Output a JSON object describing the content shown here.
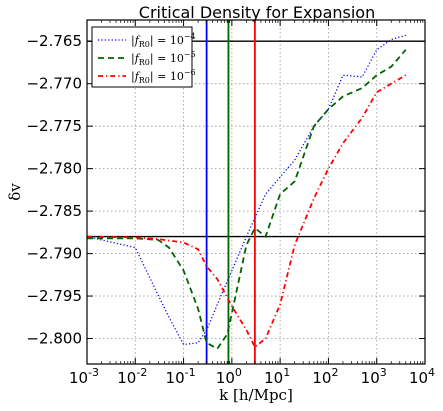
{
  "chart_data": {
    "type": "line",
    "title": "Critical Density for Expansion",
    "xlabel": "k [h/Mpc]",
    "ylabel": "δv",
    "xscale": "log",
    "xlim": [
      0.001,
      10000
    ],
    "ylim": [
      -2.803,
      -2.7625
    ],
    "grid": true,
    "legend_position": "top-left",
    "x_ticks": [
      {
        "value": 0.001,
        "base": "10",
        "exp": "-3"
      },
      {
        "value": 0.01,
        "base": "10",
        "exp": "-2"
      },
      {
        "value": 0.1,
        "base": "10",
        "exp": "-1"
      },
      {
        "value": 1,
        "base": "10",
        "exp": "0"
      },
      {
        "value": 10,
        "base": "10",
        "exp": "1"
      },
      {
        "value": 100,
        "base": "10",
        "exp": "2"
      },
      {
        "value": 1000,
        "base": "10",
        "exp": "3"
      },
      {
        "value": 10000,
        "base": "10",
        "exp": "4"
      }
    ],
    "y_ticks": [
      -2.765,
      -2.77,
      -2.775,
      -2.78,
      -2.785,
      -2.79,
      -2.795,
      -2.8
    ],
    "y_tick_labels": [
      "−2.765",
      "−2.770",
      "−2.775",
      "−2.780",
      "−2.785",
      "−2.790",
      "−2.795",
      "−2.800"
    ],
    "series": [
      {
        "name": "|fR0| = 10^-4",
        "color": "#0000ff",
        "dash": "dotted",
        "x": [
          0.001,
          0.01,
          0.025,
          0.05,
          0.1,
          0.2,
          0.3,
          0.5,
          1,
          2,
          5,
          10,
          20,
          50,
          100,
          200,
          500,
          1000,
          2000,
          4000
        ],
        "y": [
          -2.788,
          -2.7893,
          -2.794,
          -2.7975,
          -2.8007,
          -2.8005,
          -2.799,
          -2.796,
          -2.792,
          -2.788,
          -2.783,
          -2.781,
          -2.779,
          -2.775,
          -2.773,
          -2.769,
          -2.7692,
          -2.766,
          -2.7648,
          -2.7643
        ]
      },
      {
        "name": "|fR0| = 10^-5",
        "color": "#006400",
        "dash": "dashed",
        "x": [
          0.001,
          0.01,
          0.03,
          0.05,
          0.1,
          0.2,
          0.3,
          0.5,
          0.8,
          1,
          2,
          3,
          5,
          10,
          20,
          50,
          100,
          200,
          500,
          1000,
          2000,
          4000
        ],
        "y": [
          -2.7882,
          -2.7882,
          -2.7884,
          -2.7893,
          -2.792,
          -2.7965,
          -2.8005,
          -2.8012,
          -2.7995,
          -2.797,
          -2.789,
          -2.787,
          -2.788,
          -2.783,
          -2.7815,
          -2.775,
          -2.773,
          -2.7715,
          -2.7705,
          -2.769,
          -2.768,
          -2.766
        ]
      },
      {
        "name": "|fR0| = 10^-6",
        "color": "#ff0000",
        "dash": "dashdot",
        "x": [
          0.001,
          0.01,
          0.03,
          0.1,
          0.2,
          0.3,
          0.5,
          1,
          2,
          3,
          5,
          10,
          20,
          50,
          100,
          200,
          500,
          1000,
          2000,
          4000
        ],
        "y": [
          -2.788,
          -2.7881,
          -2.7883,
          -2.7887,
          -2.7895,
          -2.7915,
          -2.793,
          -2.7962,
          -2.799,
          -2.801,
          -2.8,
          -2.796,
          -2.789,
          -2.7835,
          -2.78,
          -2.777,
          -2.774,
          -2.771,
          -2.77,
          -2.769
        ]
      }
    ],
    "hlines": [
      {
        "y": -2.765,
        "color": "#000000"
      },
      {
        "y": -2.788,
        "color": "#000000"
      }
    ],
    "vlines": [
      {
        "x": 0.3,
        "color": "#0000ff"
      },
      {
        "x": 0.85,
        "color": "#006400"
      },
      {
        "x": 3.0,
        "color": "#ff0000"
      }
    ],
    "legend": [
      {
        "label_base": "|f",
        "label_sub": "R0",
        "label_eq": "| = 10",
        "label_exp": "−4",
        "color": "#0000ff",
        "dash": "dotted"
      },
      {
        "label_base": "|f",
        "label_sub": "R0",
        "label_eq": "| = 10",
        "label_exp": "−5",
        "color": "#006400",
        "dash": "dashed"
      },
      {
        "label_base": "|f",
        "label_sub": "R0",
        "label_eq": "| = 10",
        "label_exp": "−6",
        "color": "#ff0000",
        "dash": "dashdot"
      }
    ]
  }
}
